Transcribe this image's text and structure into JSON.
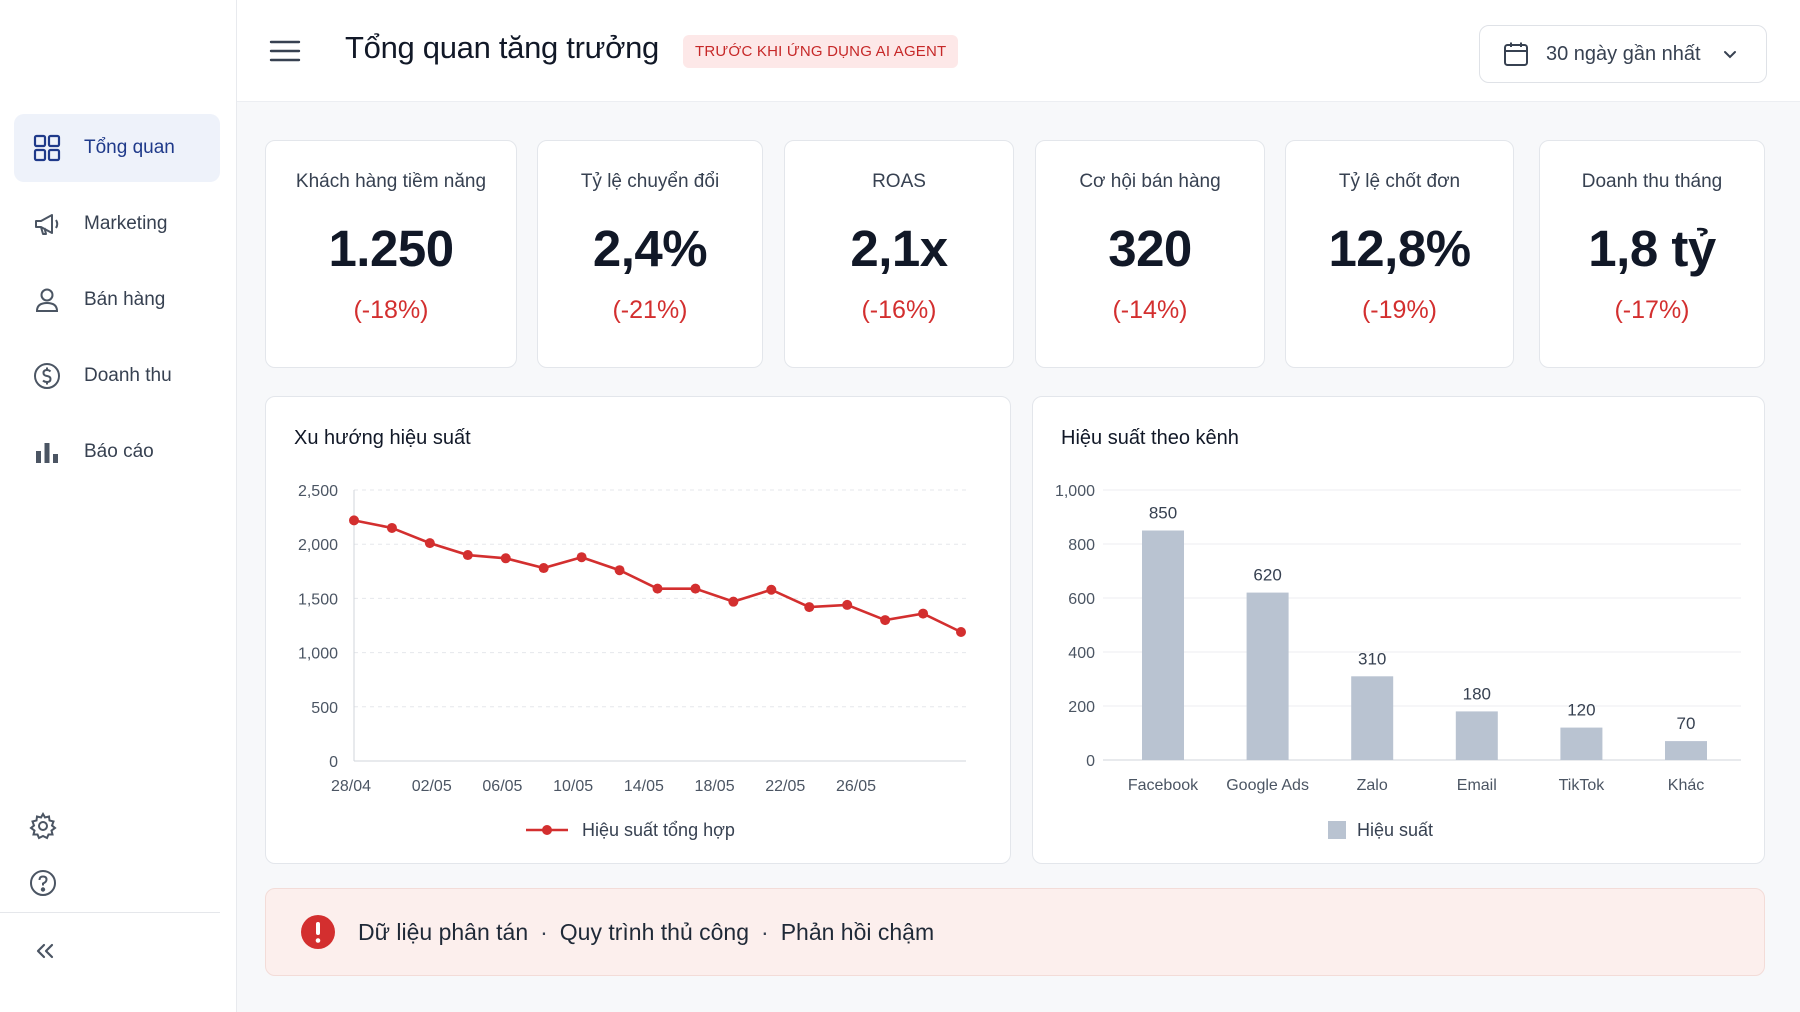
{
  "sidebar": {
    "items": [
      {
        "label": "Tổng quan",
        "icon": "dashboard-grid-icon",
        "active": true
      },
      {
        "label": "Marketing",
        "icon": "megaphone-icon",
        "active": false
      },
      {
        "label": "Bán hàng",
        "icon": "user-icon",
        "active": false
      },
      {
        "label": "Doanh thu",
        "icon": "dollar-circle-icon",
        "active": false
      },
      {
        "label": "Báo cáo",
        "icon": "bar-chart-icon",
        "active": false
      }
    ],
    "bottom_icons": [
      "gear-icon",
      "help-circle-icon",
      "collapse-chevrons-icon"
    ]
  },
  "header": {
    "title": "Tổng quan tăng trưởng",
    "badge": "TRƯỚC KHI ỨNG DỤNG AI AGENT",
    "date_range": "30 ngày gần nhất"
  },
  "kpis": [
    {
      "label": "Khách hàng tiềm năng",
      "value": "1.250",
      "change": "(-18%)"
    },
    {
      "label": "Tỷ lệ chuyển đổi",
      "value": "2,4%",
      "change": "(-21%)"
    },
    {
      "label": "ROAS",
      "value": "2,1x",
      "change": "(-16%)"
    },
    {
      "label": "Cơ hội bán hàng",
      "value": "320",
      "change": "(-14%)"
    },
    {
      "label": "Tỷ lệ chốt đơn",
      "value": "12,8%",
      "change": "(-19%)"
    },
    {
      "label": "Doanh thu tháng",
      "value": "1,8 tỷ",
      "change": "(-17%)"
    }
  ],
  "chart_data": [
    {
      "type": "line",
      "title": "Xu hướng hiệu suất",
      "x_ticks": [
        "28/04",
        "02/05",
        "06/05",
        "10/05",
        "14/05",
        "18/05",
        "22/05",
        "26/05"
      ],
      "y_ticks": [
        "0",
        "500",
        "1,000",
        "1,500",
        "2,000",
        "2,500"
      ],
      "ylim": [
        0,
        2500
      ],
      "series": [
        {
          "name": "Hiệu suất tổng hợp",
          "color": "#d32f2f",
          "values": [
            2220,
            2150,
            2010,
            1900,
            1870,
            1780,
            1880,
            1760,
            1590,
            1590,
            1470,
            1580,
            1420,
            1440,
            1300,
            1360,
            1190
          ]
        }
      ],
      "grid": true,
      "legend": "bottom"
    },
    {
      "type": "bar",
      "title": "Hiệu suất theo kênh",
      "categories": [
        "Facebook",
        "Google Ads",
        "Zalo",
        "Email",
        "TikTok",
        "Khác"
      ],
      "values": [
        850,
        620,
        310,
        180,
        120,
        70
      ],
      "y_ticks": [
        "0",
        "200",
        "400",
        "600",
        "800",
        "1,000"
      ],
      "ylim": [
        0,
        1000
      ],
      "series_name": "Hiệu suất",
      "color": "#b9c3d1",
      "grid": true,
      "legend": "bottom"
    }
  ],
  "alert": {
    "icon": "alert-circle-icon",
    "items": [
      "Dữ liệu phân tán",
      "Quy trình thủ công",
      "Phản hồi chậm"
    ],
    "separator": "·"
  },
  "colors": {
    "accent": "#1f3a8a",
    "negative": "#d32f2f",
    "bar": "#b9c3d1"
  }
}
